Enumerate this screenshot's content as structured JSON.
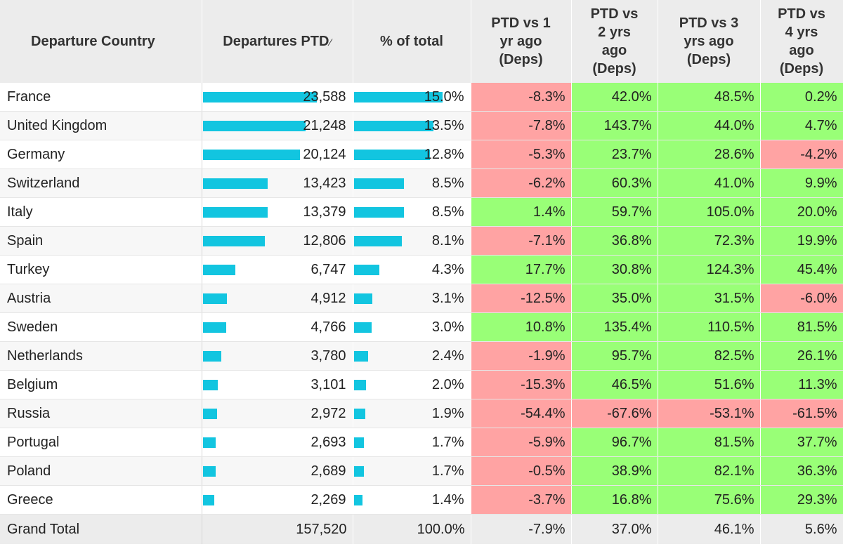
{
  "headers": {
    "country": "Departure Country",
    "departures": "Departures PTD",
    "sort_glyph": "⁄",
    "share": "% of total",
    "vs1": [
      "PTD vs 1",
      "yr ago",
      "(Deps)"
    ],
    "vs2": [
      "PTD vs",
      "2 yrs",
      "ago",
      "(Deps)"
    ],
    "vs3": [
      "PTD vs 3",
      "yrs ago",
      "(Deps)"
    ],
    "vs4": [
      "PTD vs",
      "4 yrs",
      "ago",
      "(Deps)"
    ]
  },
  "colors": {
    "bar": "#12c5e0",
    "positive": "#99ff77",
    "negative": "#ffa3a3",
    "header_bg": "#ececec"
  },
  "max_departures": 23588,
  "rows": [
    {
      "country": "France",
      "departures": "23,588",
      "dep_value": 23588,
      "share": "15.0%",
      "share_value": 15.0,
      "vs1": "-8.3%",
      "vs2": "42.0%",
      "vs3": "48.5%",
      "vs4": "0.2%"
    },
    {
      "country": "United Kingdom",
      "departures": "21,248",
      "dep_value": 21248,
      "share": "13.5%",
      "share_value": 13.5,
      "vs1": "-7.8%",
      "vs2": "143.7%",
      "vs3": "44.0%",
      "vs4": "4.7%"
    },
    {
      "country": "Germany",
      "departures": "20,124",
      "dep_value": 20124,
      "share": "12.8%",
      "share_value": 12.8,
      "vs1": "-5.3%",
      "vs2": "23.7%",
      "vs3": "28.6%",
      "vs4": "-4.2%"
    },
    {
      "country": "Switzerland",
      "departures": "13,423",
      "dep_value": 13423,
      "share": "8.5%",
      "share_value": 8.5,
      "vs1": "-6.2%",
      "vs2": "60.3%",
      "vs3": "41.0%",
      "vs4": "9.9%"
    },
    {
      "country": "Italy",
      "departures": "13,379",
      "dep_value": 13379,
      "share": "8.5%",
      "share_value": 8.5,
      "vs1": "1.4%",
      "vs2": "59.7%",
      "vs3": "105.0%",
      "vs4": "20.0%"
    },
    {
      "country": "Spain",
      "departures": "12,806",
      "dep_value": 12806,
      "share": "8.1%",
      "share_value": 8.1,
      "vs1": "-7.1%",
      "vs2": "36.8%",
      "vs3": "72.3%",
      "vs4": "19.9%"
    },
    {
      "country": "Turkey",
      "departures": "6,747",
      "dep_value": 6747,
      "share": "4.3%",
      "share_value": 4.3,
      "vs1": "17.7%",
      "vs2": "30.8%",
      "vs3": "124.3%",
      "vs4": "45.4%"
    },
    {
      "country": "Austria",
      "departures": "4,912",
      "dep_value": 4912,
      "share": "3.1%",
      "share_value": 3.1,
      "vs1": "-12.5%",
      "vs2": "35.0%",
      "vs3": "31.5%",
      "vs4": "-6.0%"
    },
    {
      "country": "Sweden",
      "departures": "4,766",
      "dep_value": 4766,
      "share": "3.0%",
      "share_value": 3.0,
      "vs1": "10.8%",
      "vs2": "135.4%",
      "vs3": "110.5%",
      "vs4": "81.5%"
    },
    {
      "country": "Netherlands",
      "departures": "3,780",
      "dep_value": 3780,
      "share": "2.4%",
      "share_value": 2.4,
      "vs1": "-1.9%",
      "vs2": "95.7%",
      "vs3": "82.5%",
      "vs4": "26.1%"
    },
    {
      "country": "Belgium",
      "departures": "3,101",
      "dep_value": 3101,
      "share": "2.0%",
      "share_value": 2.0,
      "vs1": "-15.3%",
      "vs2": "46.5%",
      "vs3": "51.6%",
      "vs4": "11.3%"
    },
    {
      "country": "Russia",
      "departures": "2,972",
      "dep_value": 2972,
      "share": "1.9%",
      "share_value": 1.9,
      "vs1": "-54.4%",
      "vs2": "-67.6%",
      "vs3": "-53.1%",
      "vs4": "-61.5%"
    },
    {
      "country": "Portugal",
      "departures": "2,693",
      "dep_value": 2693,
      "share": "1.7%",
      "share_value": 1.7,
      "vs1": "-5.9%",
      "vs2": "96.7%",
      "vs3": "81.5%",
      "vs4": "37.7%"
    },
    {
      "country": "Poland",
      "departures": "2,689",
      "dep_value": 2689,
      "share": "1.7%",
      "share_value": 1.7,
      "vs1": "-0.5%",
      "vs2": "38.9%",
      "vs3": "82.1%",
      "vs4": "36.3%"
    },
    {
      "country": "Greece",
      "departures": "2,269",
      "dep_value": 2269,
      "share": "1.4%",
      "share_value": 1.4,
      "vs1": "-3.7%",
      "vs2": "16.8%",
      "vs3": "75.6%",
      "vs4": "29.3%"
    }
  ],
  "total": {
    "label": "Grand Total",
    "departures": "157,520",
    "share": "100.0%",
    "vs1": "-7.9%",
    "vs2": "37.0%",
    "vs3": "46.1%",
    "vs4": "5.6%"
  }
}
